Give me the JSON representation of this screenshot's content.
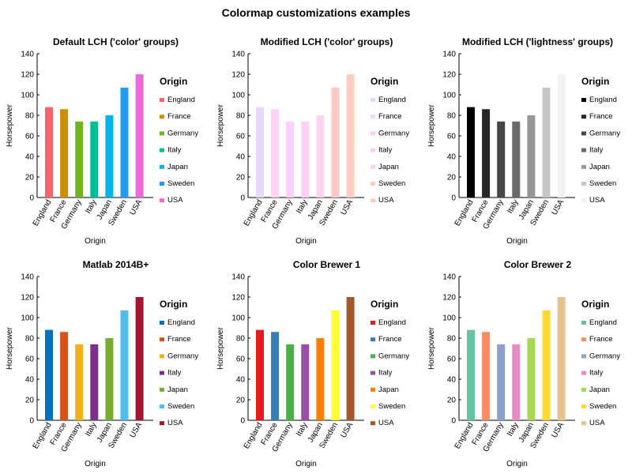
{
  "figure": {
    "title": "Colormap customizations examples"
  },
  "chart_data": [
    {
      "type": "bar",
      "title": "Default LCH ('color' groups)",
      "xlabel": "Origin",
      "ylabel": "Horsepower",
      "ylim": [
        0,
        140
      ],
      "yticks": [
        0,
        20,
        40,
        60,
        80,
        100,
        120,
        140
      ],
      "categories": [
        "England",
        "France",
        "Germany",
        "Italy",
        "Japan",
        "Sweden",
        "USA"
      ],
      "values": [
        88,
        86,
        74,
        74,
        80,
        107,
        120
      ],
      "colors": [
        "#f8626c",
        "#cc8f00",
        "#70b521",
        "#00bf97",
        "#00b4eb",
        "#1f9ef0",
        "#ec6ad8"
      ],
      "legend_title": "Origin",
      "legend_position": "right",
      "grid": false
    },
    {
      "type": "bar",
      "title": "Modified LCH ('color' groups)",
      "xlabel": "Origin",
      "ylabel": "Horsepower",
      "ylim": [
        0,
        140
      ],
      "yticks": [
        0,
        20,
        40,
        60,
        80,
        100,
        120,
        140
      ],
      "categories": [
        "England",
        "France",
        "Germany",
        "Italy",
        "Japan",
        "Sweden",
        "USA"
      ],
      "values": [
        88,
        86,
        74,
        74,
        80,
        107,
        120
      ],
      "colors": [
        "#e6d9fb",
        "#fcd2f7",
        "#fbcff8",
        "#fbd0f3",
        "#fdd2ec",
        "#fdc9c2",
        "#ffcec0"
      ],
      "legend_title": "Origin",
      "legend_position": "right",
      "grid": false
    },
    {
      "type": "bar",
      "title": "Modified LCH ('lightness' groups)",
      "xlabel": "Origin",
      "ylabel": "Horsepower",
      "ylim": [
        0,
        140
      ],
      "yticks": [
        0,
        20,
        40,
        60,
        80,
        100,
        120,
        140
      ],
      "categories": [
        "England",
        "France",
        "Germany",
        "Italy",
        "Japan",
        "Sweden",
        "USA"
      ],
      "values": [
        88,
        86,
        74,
        74,
        80,
        107,
        120
      ],
      "colors": [
        "#000000",
        "#262626",
        "#474747",
        "#6a6a6a",
        "#979797",
        "#c6c6c6",
        "#f2f2f2"
      ],
      "legend_title": "Origin",
      "legend_position": "right",
      "grid": false
    },
    {
      "type": "bar",
      "title": "Matlab 2014B+",
      "xlabel": "Origin",
      "ylabel": "Horsepower",
      "ylim": [
        0,
        140
      ],
      "yticks": [
        0,
        20,
        40,
        60,
        80,
        100,
        120,
        140
      ],
      "categories": [
        "England",
        "France",
        "Germany",
        "Italy",
        "Japan",
        "Sweden",
        "USA"
      ],
      "values": [
        88,
        86,
        74,
        74,
        80,
        107,
        120
      ],
      "colors": [
        "#0072bd",
        "#d95319",
        "#edb120",
        "#7e2f8e",
        "#77ac30",
        "#4dbeee",
        "#a2142f"
      ],
      "legend_title": "Origin",
      "legend_position": "right",
      "grid": false
    },
    {
      "type": "bar",
      "title": "Color Brewer 1",
      "xlabel": "Origin",
      "ylabel": "Horsepower",
      "ylim": [
        0,
        140
      ],
      "yticks": [
        0,
        20,
        40,
        60,
        80,
        100,
        120,
        140
      ],
      "categories": [
        "England",
        "France",
        "Germany",
        "Italy",
        "Japan",
        "Sweden",
        "USA"
      ],
      "values": [
        88,
        86,
        74,
        74,
        80,
        107,
        120
      ],
      "colors": [
        "#e41a1c",
        "#377eb8",
        "#4daf4a",
        "#984ea3",
        "#ff7f00",
        "#ffff33",
        "#a65628"
      ],
      "legend_title": "Origin",
      "legend_position": "right",
      "grid": false
    },
    {
      "type": "bar",
      "title": "Color Brewer 2",
      "xlabel": "Origin",
      "ylabel": "Horsepower",
      "ylim": [
        0,
        140
      ],
      "yticks": [
        0,
        20,
        40,
        60,
        80,
        100,
        120,
        140
      ],
      "categories": [
        "England",
        "France",
        "Germany",
        "Italy",
        "Japan",
        "Sweden",
        "USA"
      ],
      "values": [
        88,
        86,
        74,
        74,
        80,
        107,
        120
      ],
      "colors": [
        "#66c2a5",
        "#fc8d62",
        "#8da0cb",
        "#e78ac3",
        "#a6d854",
        "#ffd92f",
        "#e5c494"
      ],
      "legend_title": "Origin",
      "legend_position": "right",
      "grid": false
    }
  ]
}
